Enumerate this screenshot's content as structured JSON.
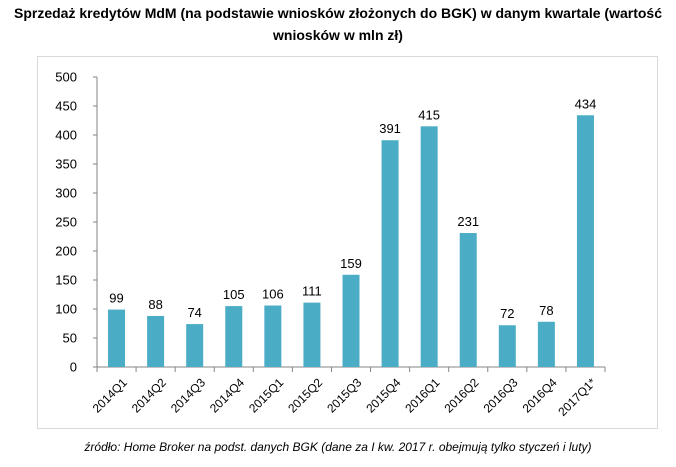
{
  "title_line1": "Sprzedaż kredytów MdM (na podstawie wniosków złożonych do BGK) w danym kwartale (wartość",
  "title_line2": "wniosków w mln zł)",
  "source": "źródło: Home Broker na podst. danych BGK (dane za I kw. 2017 r. obejmują tylko styczeń i luty)",
  "chart_data": {
    "type": "bar",
    "title": "Sprzedaż kredytów MdM (na podstawie wniosków złożonych do BGK) w danym kwartale (wartość wniosków w mln zł)",
    "categories": [
      "2014Q1",
      "2014Q2",
      "2014Q3",
      "2014Q4",
      "2015Q1",
      "2015Q2",
      "2015Q3",
      "2015Q4",
      "2016Q1",
      "2016Q2",
      "2016Q3",
      "2016Q4",
      "2017Q1*"
    ],
    "values": [
      99,
      88,
      74,
      105,
      106,
      111,
      159,
      391,
      415,
      231,
      72,
      78,
      434
    ],
    "xlabel": "",
    "ylabel": "",
    "ylim": [
      0,
      500
    ],
    "yticks": [
      0,
      50,
      100,
      150,
      200,
      250,
      300,
      350,
      400,
      450,
      500
    ],
    "grid": false,
    "bar_color": "#4bacc6"
  }
}
